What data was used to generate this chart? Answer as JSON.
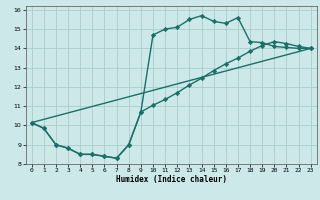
{
  "xlabel": "Humidex (Indice chaleur)",
  "xlim": [
    -0.5,
    23.5
  ],
  "ylim": [
    8,
    16.2
  ],
  "xticks": [
    0,
    1,
    2,
    3,
    4,
    5,
    6,
    7,
    8,
    9,
    10,
    11,
    12,
    13,
    14,
    15,
    16,
    17,
    18,
    19,
    20,
    21,
    22,
    23
  ],
  "yticks": [
    8,
    9,
    10,
    11,
    12,
    13,
    14,
    15,
    16
  ],
  "bg_color": "#cce8e8",
  "grid_color": "#aacccc",
  "line_color": "#1a7068",
  "line_width": 1.0,
  "marker": "D",
  "marker_size": 2.2,
  "curve1_x": [
    0,
    1,
    2,
    3,
    4,
    5,
    6,
    7,
    8,
    9,
    10,
    11,
    12,
    13,
    14,
    15,
    16,
    17,
    18,
    19,
    20,
    21,
    22,
    23
  ],
  "curve1_y": [
    10.15,
    9.85,
    9.0,
    8.82,
    8.5,
    8.5,
    8.4,
    8.3,
    9.0,
    10.7,
    14.7,
    15.0,
    15.1,
    15.5,
    15.7,
    15.4,
    15.3,
    15.6,
    14.35,
    14.3,
    14.1,
    14.05,
    14.0,
    14.0
  ],
  "curve2_x": [
    0,
    1,
    2,
    3,
    4,
    5,
    6,
    7,
    8,
    9,
    10,
    11,
    12,
    13,
    14,
    15,
    16,
    17,
    18,
    19,
    20,
    21,
    22,
    23
  ],
  "curve2_y": [
    10.15,
    9.85,
    9.0,
    8.82,
    8.5,
    8.5,
    8.4,
    8.3,
    9.0,
    10.7,
    11.05,
    11.35,
    11.7,
    12.1,
    12.45,
    12.85,
    13.2,
    13.5,
    13.85,
    14.15,
    14.35,
    14.25,
    14.1,
    14.0
  ],
  "curve3_x": [
    0,
    23
  ],
  "curve3_y": [
    10.15,
    14.0
  ]
}
